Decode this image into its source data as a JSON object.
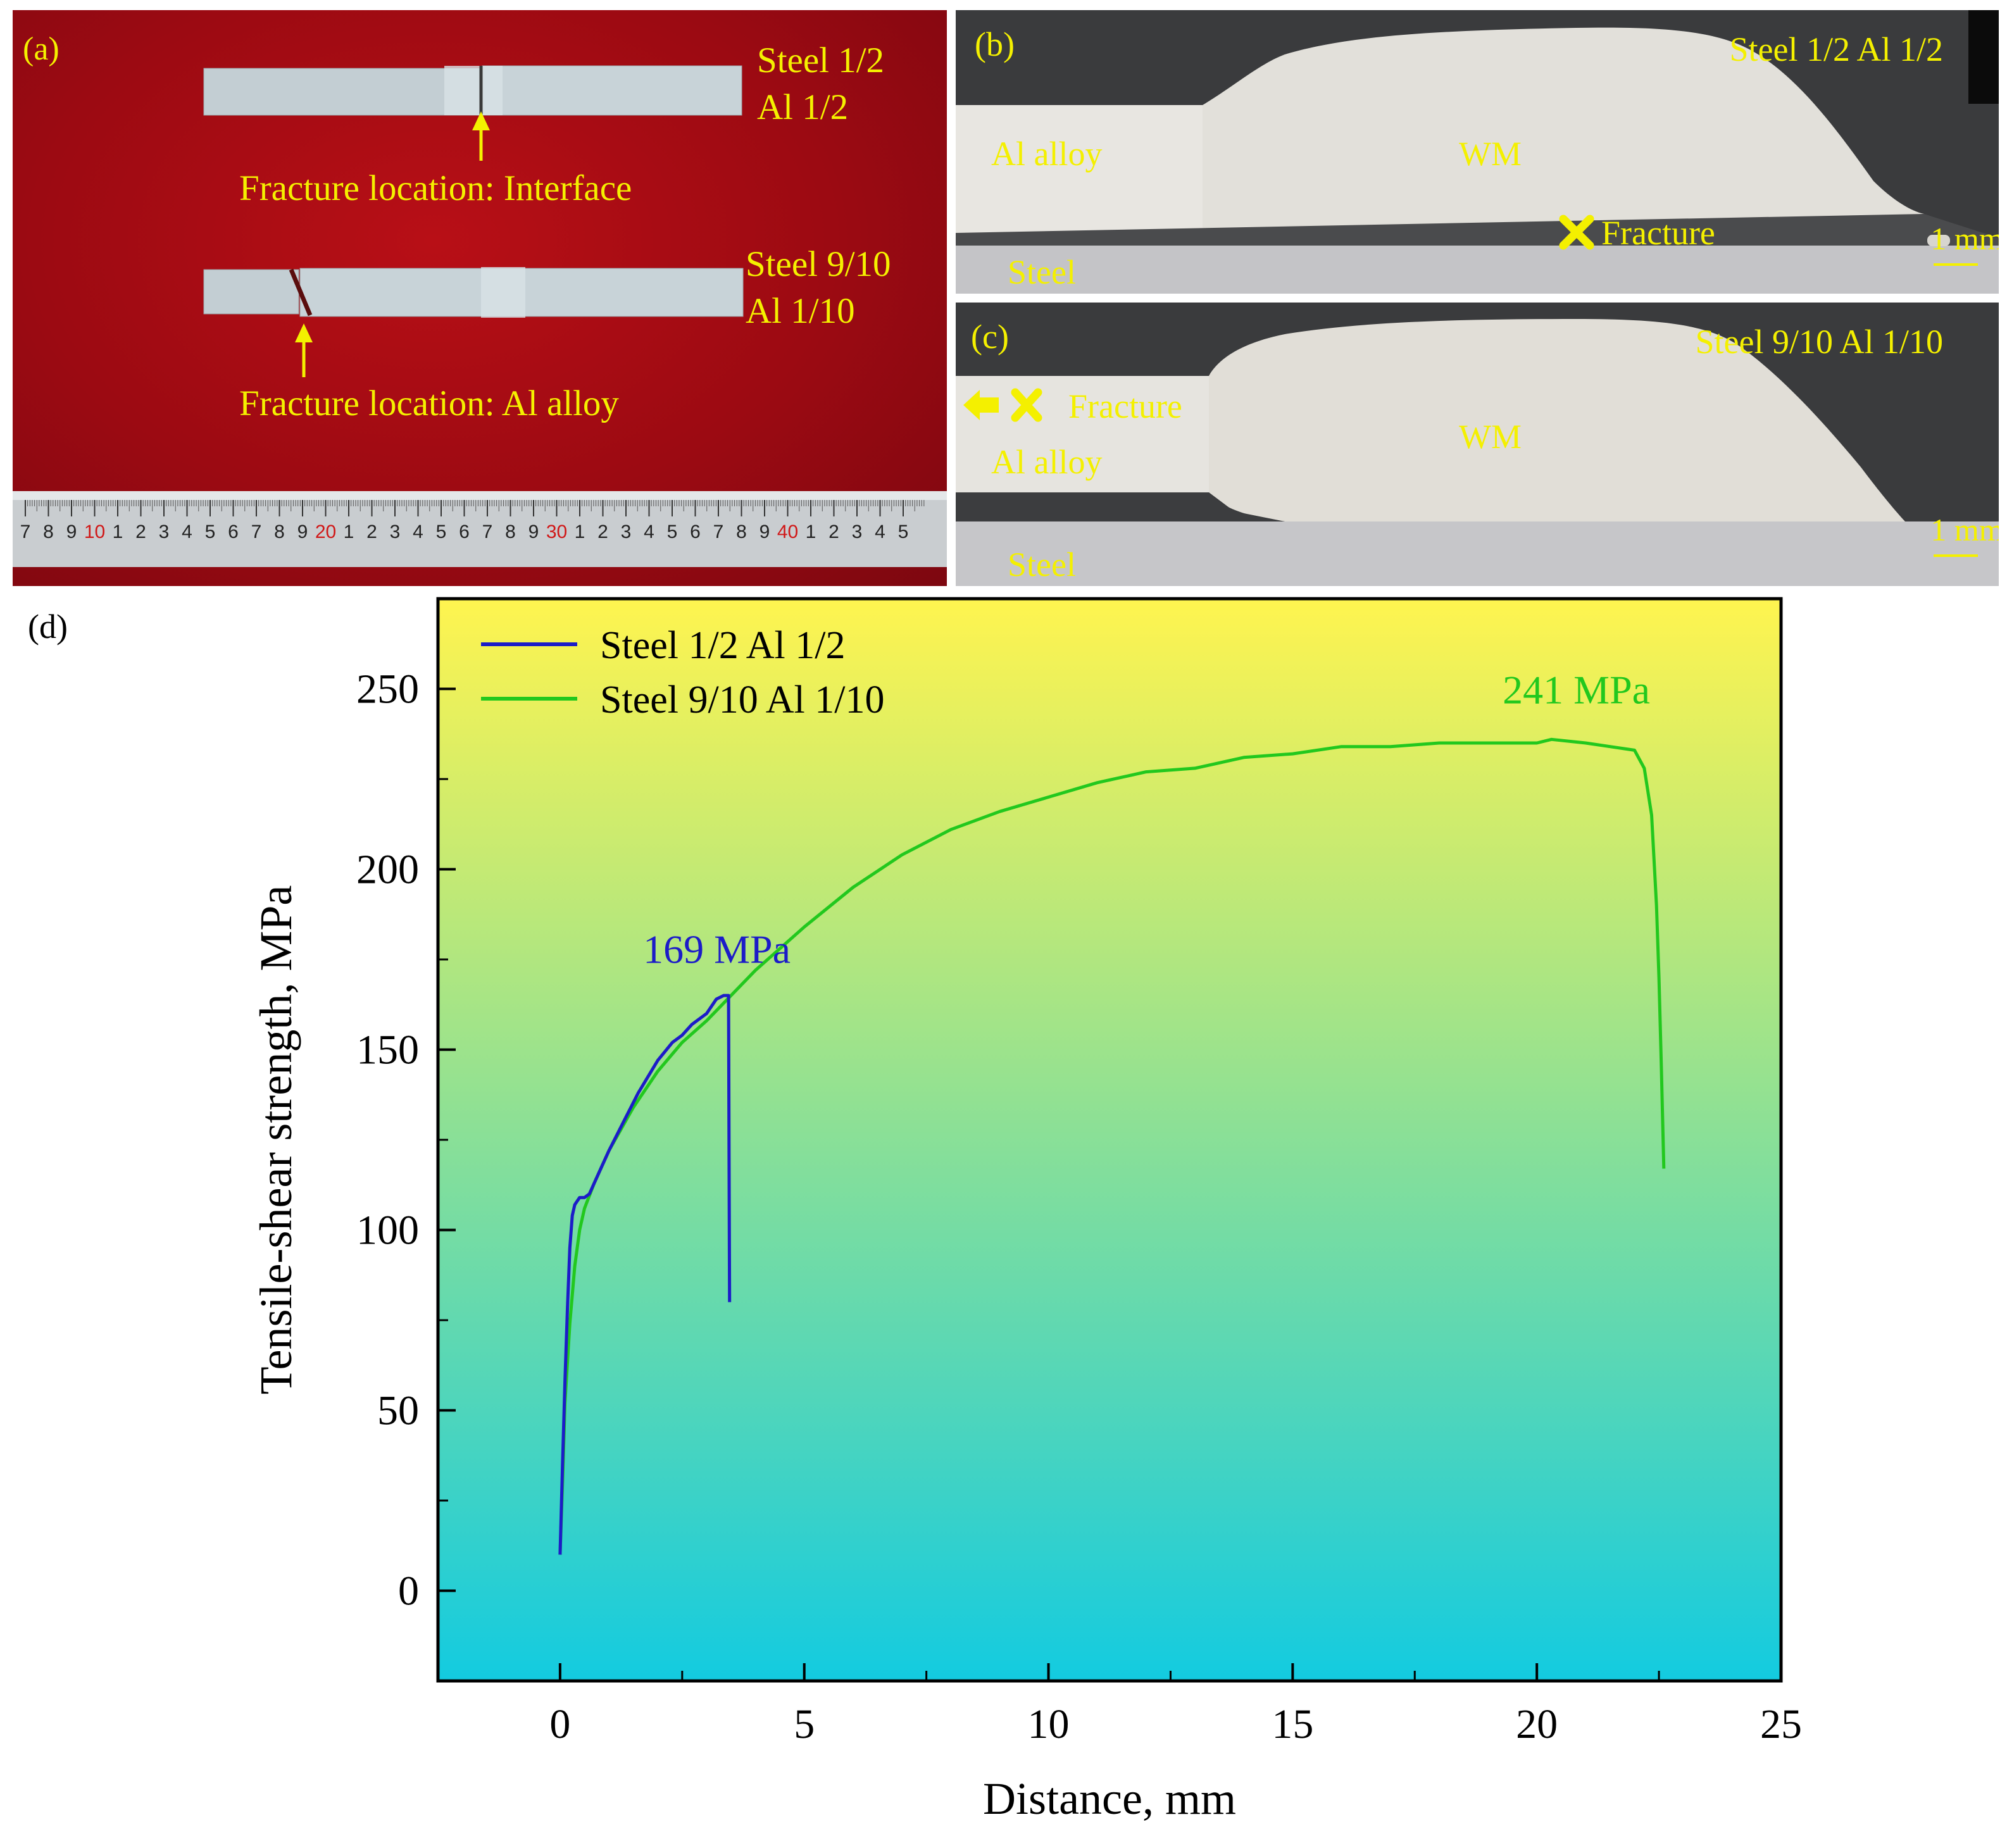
{
  "panel_a": {
    "label": "(a)",
    "spec1": {
      "line1": "Steel 1/2",
      "line2": "Al 1/2"
    },
    "spec2": {
      "line1": "Steel 9/10",
      "line2": "Al 1/10"
    },
    "fracture_interface": "Fracture location: Interface",
    "fracture_al": "Fracture location: Al alloy",
    "ruler_digits": [
      "7",
      "8",
      "9",
      "10",
      "1",
      "2",
      "3",
      "4",
      "5",
      "6",
      "7",
      "8",
      "9",
      "20",
      "1",
      "2",
      "3",
      "4",
      "5",
      "6",
      "7",
      "8",
      "9",
      "30",
      "1",
      "2",
      "3",
      "4",
      "5",
      "6",
      "7",
      "8",
      "9",
      "40",
      "1",
      "2",
      "3",
      "4",
      "5"
    ]
  },
  "panel_b": {
    "label": "(b)",
    "title": "Steel 1/2 Al 1/2",
    "al_alloy": "Al alloy",
    "wm": "WM",
    "steel": "Steel",
    "fracture": "Fracture",
    "scale": "1 mm"
  },
  "panel_c": {
    "label": "(c)",
    "title": "Steel 9/10 Al 1/10",
    "al_alloy": "Al alloy",
    "wm": "WM",
    "steel": "Steel",
    "fracture": "Fracture",
    "scale": "1 mm"
  },
  "panel_d": {
    "label": "(d)",
    "colors": {
      "gradient_top": "#fff44f",
      "gradient_bottom": "#13cbe0",
      "series1": "#1c1cc8",
      "series2": "#22c81e"
    }
  },
  "chart_data": {
    "type": "line",
    "xlabel": "Distance, mm",
    "ylabel": "Tensile-shear strength, MPa",
    "xlim": [
      -2.5,
      25
    ],
    "ylim": [
      -25,
      275
    ],
    "xticks": [
      0,
      5,
      10,
      15,
      20,
      25
    ],
    "yticks": [
      0,
      50,
      100,
      150,
      200,
      250
    ],
    "legend_position": "top-left",
    "series": [
      {
        "name": "Steel 1/2 Al 1/2",
        "color": "#1c1cc8",
        "x": [
          0.0,
          0.05,
          0.1,
          0.15,
          0.2,
          0.25,
          0.3,
          0.35,
          0.4,
          0.5,
          0.6,
          0.8,
          1.0,
          1.3,
          1.6,
          2.0,
          2.3,
          2.5,
          2.7,
          3.0,
          3.2,
          3.35,
          3.45,
          3.46,
          3.47
        ],
        "y": [
          10,
          35,
          58,
          78,
          95,
          104,
          107,
          108,
          109,
          109,
          110,
          116,
          122,
          130,
          138,
          147,
          152,
          154,
          157,
          160,
          164,
          165,
          165,
          120,
          80
        ]
      },
      {
        "name": "Steel 9/10 Al 1/10",
        "color": "#22c81e",
        "x": [
          0.0,
          0.05,
          0.1,
          0.2,
          0.3,
          0.4,
          0.5,
          0.7,
          1.0,
          1.5,
          2.0,
          2.5,
          3.0,
          3.5,
          4.0,
          5.0,
          6.0,
          7.0,
          8.0,
          9.0,
          10.0,
          11.0,
          12.0,
          13.0,
          14.0,
          15.0,
          16.0,
          17.0,
          18.0,
          19.0,
          20.0,
          20.3,
          21.0,
          21.5,
          22.0,
          22.2,
          22.35,
          22.45,
          22.5,
          22.55,
          22.6
        ],
        "y": [
          10,
          30,
          52,
          74,
          90,
          100,
          106,
          113,
          122,
          134,
          144,
          152,
          158,
          165,
          172,
          184,
          195,
          204,
          211,
          216,
          220,
          224,
          227,
          228,
          231,
          232,
          234,
          234,
          235,
          235,
          235,
          236,
          235,
          234,
          233,
          228,
          215,
          190,
          170,
          145,
          117
        ]
      }
    ],
    "annotations": [
      {
        "text": "169 MPa",
        "x": 1.7,
        "y": 174,
        "color": "#1c1cc8"
      },
      {
        "text": "241 MPa",
        "x": 19.3,
        "y": 246,
        "color": "#22c81e"
      }
    ]
  }
}
